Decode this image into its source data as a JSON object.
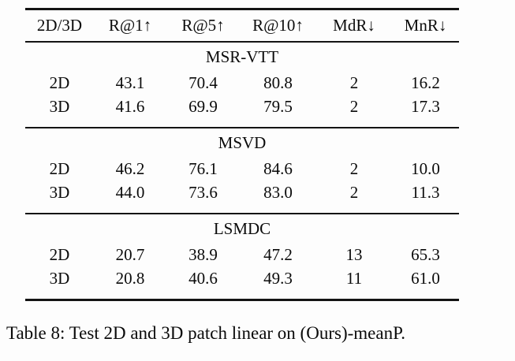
{
  "table": {
    "columns": [
      "2D/3D",
      "R@1↑",
      "R@5↑",
      "R@10↑",
      "MdR↓",
      "MnR↓"
    ],
    "sections": [
      {
        "name": "MSR-VTT",
        "rows": [
          [
            "2D",
            "43.1",
            "70.4",
            "80.8",
            "2",
            "16.2"
          ],
          [
            "3D",
            "41.6",
            "69.9",
            "79.5",
            "2",
            "17.3"
          ]
        ]
      },
      {
        "name": "MSVD",
        "rows": [
          [
            "2D",
            "46.2",
            "76.1",
            "84.6",
            "2",
            "10.0"
          ],
          [
            "3D",
            "44.0",
            "73.6",
            "83.0",
            "2",
            "11.3"
          ]
        ]
      },
      {
        "name": "LSMDC",
        "rows": [
          [
            "2D",
            "20.7",
            "38.9",
            "47.2",
            "13",
            "65.3"
          ],
          [
            "3D",
            "20.8",
            "40.6",
            "49.3",
            "11",
            "61.0"
          ]
        ]
      }
    ]
  },
  "caption": "Table 8: Test 2D and 3D patch linear on (Ours)-meanP."
}
